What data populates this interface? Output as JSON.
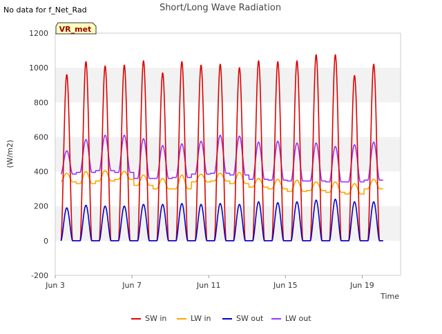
{
  "note": "No data for f_Net_Rad",
  "badge": "VR_met",
  "chart_data": {
    "type": "line",
    "title": "Short/Long Wave Radiation",
    "xlabel": "Time",
    "ylabel": "(W/m2)",
    "ylim": [
      -200,
      1200
    ],
    "xlim": [
      3,
      21
    ],
    "yticks": [
      -200,
      0,
      200,
      400,
      600,
      800,
      1000,
      1200
    ],
    "xticks": [
      {
        "value": 3,
        "label": "Jun 3"
      },
      {
        "value": 7,
        "label": "Jun 7"
      },
      {
        "value": 11,
        "label": "Jun 11"
      },
      {
        "value": 15,
        "label": "Jun 15"
      },
      {
        "value": 19,
        "label": "Jun 19"
      }
    ],
    "grid": "horizontal bands",
    "legend_position": "bottom",
    "day_start": 3.3,
    "day_end": 20.1,
    "series": [
      {
        "name": "SW in",
        "color": "#dd0000",
        "daily_peak_day": [
          3.6,
          4.6,
          5.6,
          6.6,
          7.6,
          8.6,
          9.6,
          10.6,
          11.6,
          12.6,
          13.6,
          14.6,
          15.6,
          16.6,
          17.6,
          18.6,
          19.6
        ],
        "daily_peak": [
          960,
          1035,
          1010,
          1015,
          1040,
          970,
          1035,
          1015,
          1020,
          1000,
          1040,
          1035,
          1040,
          1075,
          1075,
          955,
          1020
        ],
        "night_value": 0
      },
      {
        "name": "LW in",
        "color": "#ffa500",
        "daily_peak_day": [
          3.6,
          4.6,
          5.6,
          6.6,
          7.6,
          8.6,
          9.6,
          10.6,
          11.6,
          12.6,
          13.6,
          14.6,
          15.6,
          16.6,
          17.6,
          18.6,
          19.6
        ],
        "daily_peak": [
          390,
          400,
          405,
          400,
          380,
          360,
          380,
          385,
          390,
          395,
          360,
          355,
          350,
          340,
          340,
          330,
          355
        ],
        "night_value": [
          340,
          330,
          345,
          355,
          320,
          300,
          300,
          340,
          345,
          330,
          310,
          300,
          285,
          290,
          280,
          270,
          300
        ]
      },
      {
        "name": "SW out",
        "color": "#0000cc",
        "daily_peak_day": [
          3.6,
          4.6,
          5.6,
          6.6,
          7.6,
          8.6,
          9.6,
          10.6,
          11.6,
          12.6,
          13.6,
          14.6,
          15.6,
          16.6,
          17.6,
          18.6,
          19.6
        ],
        "daily_peak": [
          190,
          205,
          200,
          200,
          210,
          210,
          215,
          210,
          215,
          210,
          225,
          220,
          225,
          235,
          240,
          225,
          225
        ],
        "night_value": 0
      },
      {
        "name": "LW out",
        "color": "#9933ff",
        "daily_peak_day": [
          3.6,
          4.6,
          5.6,
          6.6,
          7.6,
          8.6,
          9.6,
          10.6,
          11.6,
          12.6,
          13.6,
          14.6,
          15.6,
          16.6,
          17.6,
          18.6,
          19.6
        ],
        "daily_peak": [
          520,
          585,
          610,
          610,
          590,
          550,
          560,
          575,
          610,
          605,
          570,
          575,
          565,
          565,
          545,
          555,
          570
        ],
        "night_value": [
          385,
          395,
          405,
          395,
          360,
          360,
          365,
          385,
          390,
          380,
          355,
          350,
          345,
          345,
          340,
          340,
          350
        ]
      }
    ]
  }
}
